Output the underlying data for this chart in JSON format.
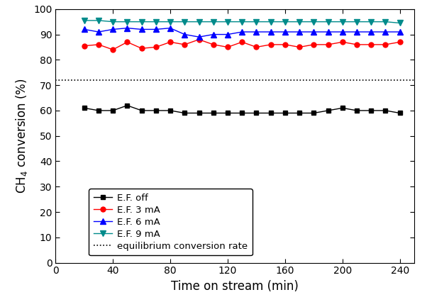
{
  "x": [
    20,
    30,
    40,
    50,
    60,
    70,
    80,
    90,
    100,
    110,
    120,
    130,
    140,
    150,
    160,
    170,
    180,
    190,
    200,
    210,
    220,
    230,
    240
  ],
  "ef_off": [
    61,
    60,
    60,
    62,
    60,
    60,
    60,
    59,
    59,
    59,
    59,
    59,
    59,
    59,
    59,
    59,
    59,
    60,
    61,
    60,
    60,
    60,
    59
  ],
  "ef_3ma": [
    85.5,
    86,
    84,
    87,
    84.5,
    85,
    87,
    86,
    88,
    86,
    85,
    87,
    85,
    86,
    86,
    85,
    86,
    86,
    87,
    86,
    86,
    86,
    87
  ],
  "ef_6ma": [
    92,
    91,
    92,
    92.5,
    92,
    92,
    92.5,
    90,
    89,
    90,
    90,
    91,
    91,
    91,
    91,
    91,
    91,
    91,
    91,
    91,
    91,
    91,
    91
  ],
  "ef_9ma": [
    95.5,
    95.5,
    95,
    95,
    95,
    95,
    95,
    95,
    95,
    95,
    95,
    95,
    95,
    95,
    95,
    95,
    95,
    95,
    95,
    95,
    95,
    95,
    94.5
  ],
  "equilibrium": 72,
  "xlabel": "Time on stream (min)",
  "ylabel": "CH$_4$ conversion (%)",
  "xlim": [
    0,
    250
  ],
  "ylim": [
    0,
    100
  ],
  "xticks": [
    0,
    40,
    80,
    120,
    160,
    200,
    240
  ],
  "yticks": [
    0,
    10,
    20,
    30,
    40,
    50,
    60,
    70,
    80,
    90,
    100
  ],
  "color_off": "#000000",
  "color_3ma": "#ff0000",
  "color_6ma": "#0000ff",
  "color_9ma": "#008B8B",
  "legend_labels": [
    "E.F. off",
    "E.F. 3 mA",
    "E.F. 6 mA",
    "E.F. 9 mA",
    "equilibrium conversion rate"
  ],
  "fig_width": 6.02,
  "fig_height": 4.26,
  "dpi": 100,
  "axis_fontsize": 12,
  "tick_fontsize": 10,
  "legend_fontsize": 9.5,
  "linewidth": 1.0,
  "markersize": 5
}
